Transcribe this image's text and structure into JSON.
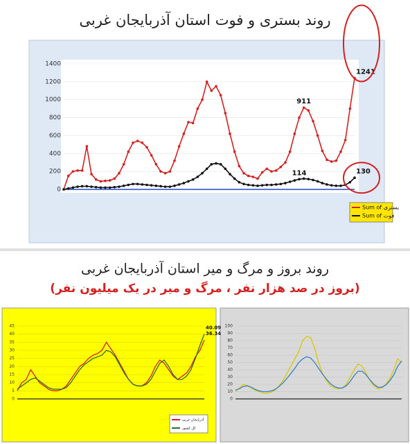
{
  "header": {
    "title_1": "روند بستری و فوت استان آذربایجان غربی",
    "title_2": "روند بروز و مرگ و میر استان آذربایجان غربی",
    "subtitle_2": "(بروز در صد هزار نفر ، مرگ و میر در یک میلیون نفر)"
  },
  "chart_data": [
    {
      "type": "line",
      "ylim": [
        0,
        1400
      ],
      "yticks": [
        0,
        200,
        400,
        600,
        800,
        1000,
        1200,
        1400
      ],
      "series": [
        {
          "name": "Sum of بستری",
          "color": "#d42020",
          "values": [
            0,
            150,
            200,
            210,
            210,
            480,
            170,
            110,
            90,
            95,
            100,
            120,
            180,
            280,
            420,
            520,
            540,
            520,
            470,
            380,
            280,
            200,
            180,
            200,
            320,
            480,
            620,
            750,
            740,
            900,
            1000,
            1200,
            1100,
            1150,
            1050,
            850,
            620,
            420,
            260,
            180,
            150,
            140,
            120,
            190,
            230,
            200,
            210,
            250,
            300,
            420,
            620,
            800,
            911,
            880,
            760,
            600,
            430,
            330,
            310,
            320,
            420,
            550,
            900,
            1241
          ],
          "value_labels": [
            null,
            null,
            null,
            null,
            null,
            null,
            null,
            null,
            null,
            null,
            null,
            null,
            null,
            null,
            null,
            null,
            null,
            null,
            null,
            null,
            null,
            null,
            null,
            null,
            null,
            null,
            null,
            null,
            null,
            null,
            null,
            null,
            null,
            null,
            null,
            null,
            null,
            null,
            null,
            null,
            null,
            null,
            null,
            null,
            null,
            null,
            null,
            null,
            null,
            null,
            null,
            null,
            "911",
            null,
            null,
            null,
            null,
            null,
            null,
            null,
            null,
            null,
            null,
            "1241"
          ]
        },
        {
          "name": "Sum of فوت",
          "color": "#111111",
          "values": [
            0,
            10,
            20,
            30,
            35,
            35,
            30,
            25,
            20,
            20,
            20,
            25,
            30,
            40,
            50,
            60,
            60,
            55,
            50,
            45,
            40,
            35,
            30,
            30,
            40,
            55,
            70,
            90,
            110,
            140,
            180,
            230,
            280,
            290,
            280,
            230,
            170,
            120,
            80,
            60,
            50,
            45,
            40,
            45,
            50,
            50,
            55,
            60,
            70,
            85,
            100,
            114,
            120,
            115,
            105,
            90,
            70,
            55,
            45,
            40,
            40,
            50,
            80,
            130
          ],
          "value_labels": [
            null,
            null,
            null,
            null,
            null,
            null,
            null,
            null,
            null,
            null,
            null,
            null,
            null,
            null,
            null,
            null,
            null,
            null,
            null,
            null,
            null,
            null,
            null,
            null,
            null,
            null,
            null,
            null,
            null,
            null,
            null,
            null,
            null,
            null,
            null,
            null,
            null,
            null,
            null,
            null,
            null,
            null,
            null,
            null,
            null,
            null,
            null,
            null,
            null,
            null,
            null,
            "114",
            null,
            null,
            null,
            null,
            null,
            null,
            null,
            null,
            null,
            null,
            null,
            "130"
          ]
        }
      ]
    },
    {
      "type": "line",
      "ylim": [
        0,
        45
      ],
      "yticks": [
        0,
        5,
        10,
        15,
        20,
        25,
        30,
        35,
        40,
        45
      ],
      "series": [
        {
          "name": "آذربایجان غربی",
          "color": "#d42020",
          "values": [
            5,
            10,
            12,
            18,
            14,
            10,
            8,
            6,
            5,
            5,
            6,
            8,
            12,
            16,
            20,
            22,
            25,
            27,
            28,
            30,
            35,
            31,
            27,
            22,
            17,
            12,
            9,
            8,
            8,
            10,
            14,
            20,
            24,
            22,
            18,
            14,
            12,
            14,
            16,
            20,
            26,
            30,
            36.34
          ],
          "value_labels": [
            null,
            null,
            null,
            null,
            null,
            null,
            null,
            null,
            null,
            null,
            null,
            null,
            null,
            null,
            null,
            null,
            null,
            null,
            null,
            null,
            null,
            null,
            null,
            null,
            null,
            null,
            null,
            null,
            null,
            null,
            null,
            null,
            null,
            null,
            null,
            null,
            null,
            null,
            null,
            null,
            null,
            null,
            "36.34"
          ]
        },
        {
          "name": "کل کشور",
          "color": "#2e6b2e",
          "values": [
            6,
            8,
            10,
            12,
            13,
            11,
            9,
            7,
            6,
            6,
            6,
            7,
            10,
            14,
            18,
            21,
            23,
            25,
            26,
            27,
            30,
            29,
            26,
            21,
            16,
            12,
            9,
            8,
            8,
            9,
            12,
            17,
            22,
            24,
            20,
            15,
            12,
            12,
            14,
            18,
            25,
            33,
            40.09
          ],
          "value_labels": [
            null,
            null,
            null,
            null,
            null,
            null,
            null,
            null,
            null,
            null,
            null,
            null,
            null,
            null,
            null,
            null,
            null,
            null,
            null,
            null,
            null,
            null,
            null,
            null,
            null,
            null,
            null,
            null,
            null,
            null,
            null,
            null,
            null,
            null,
            null,
            null,
            null,
            null,
            null,
            null,
            null,
            null,
            "40.09"
          ]
        }
      ]
    },
    {
      "type": "line",
      "ylim": [
        0,
        100
      ],
      "yticks": [
        0,
        10,
        20,
        30,
        40,
        50,
        60,
        70,
        80,
        90,
        100
      ],
      "series": [
        {
          "color": "#d8c800",
          "values": [
            10,
            15,
            20,
            18,
            15,
            12,
            10,
            8,
            8,
            9,
            12,
            18,
            25,
            35,
            45,
            55,
            65,
            80,
            86,
            84,
            70,
            50,
            35,
            25,
            18,
            15,
            14,
            15,
            20,
            30,
            40,
            48,
            45,
            35,
            25,
            18,
            14,
            15,
            20,
            28,
            40,
            55,
            50
          ]
        },
        {
          "color": "#3a7fc4",
          "values": [
            12,
            14,
            17,
            18,
            16,
            13,
            11,
            10,
            10,
            11,
            13,
            17,
            22,
            28,
            35,
            42,
            50,
            55,
            58,
            56,
            50,
            42,
            34,
            27,
            21,
            17,
            15,
            15,
            18,
            24,
            32,
            38,
            38,
            33,
            26,
            20,
            16,
            16,
            19,
            25,
            33,
            45,
            52
          ]
        }
      ]
    }
  ]
}
